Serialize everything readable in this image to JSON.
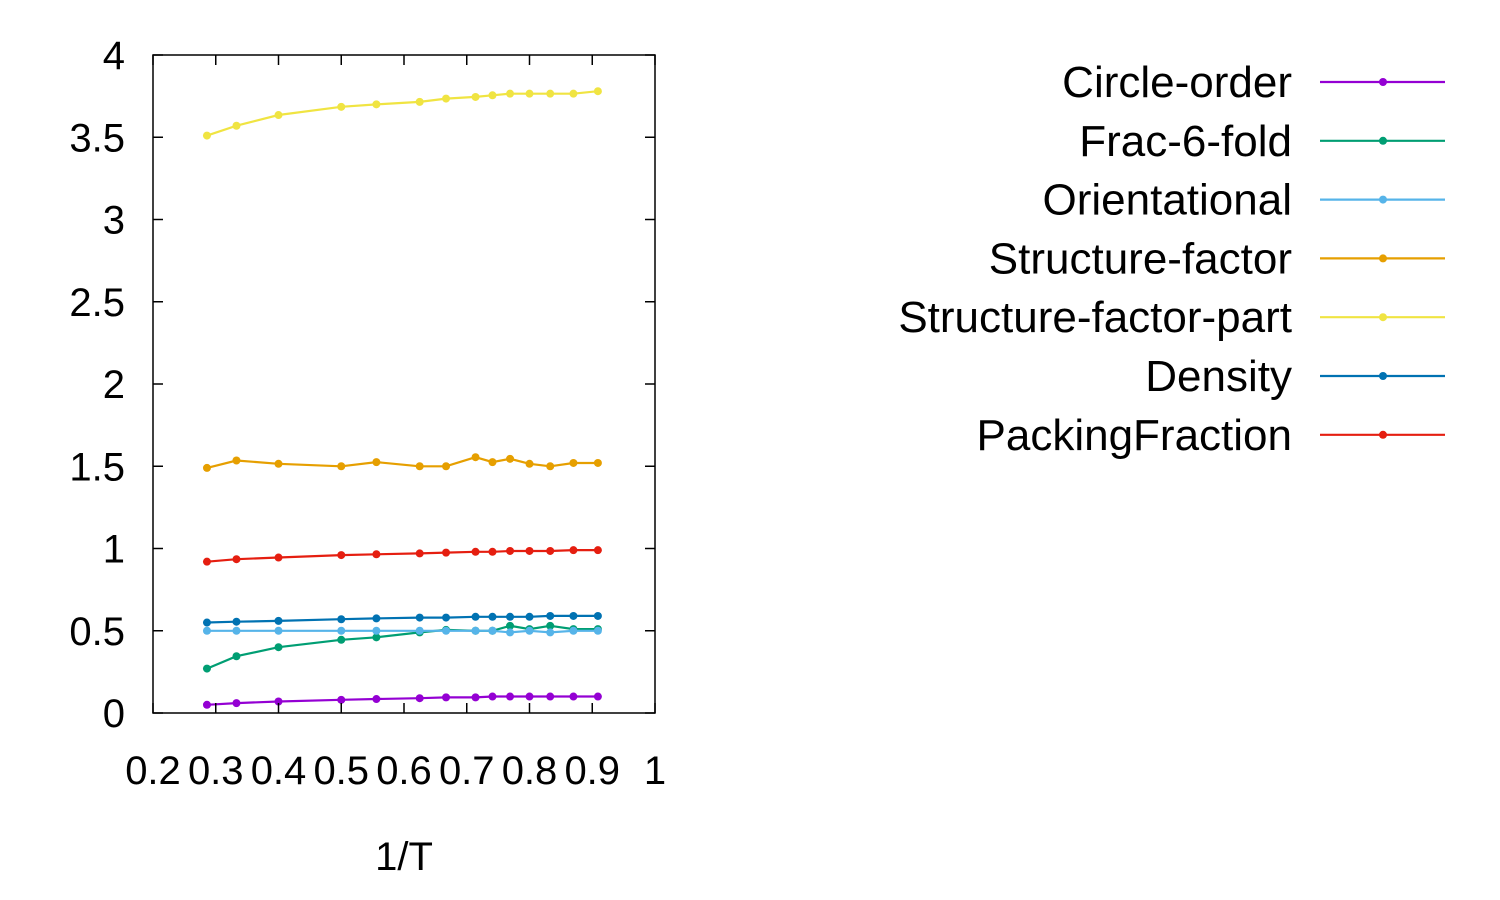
{
  "chart_data": {
    "type": "line",
    "title": "",
    "xlabel": "1/T",
    "ylabel": "",
    "xlim": [
      0.2,
      1.0
    ],
    "ylim": [
      0,
      4
    ],
    "xticks": [
      "0.2",
      "0.3",
      "0.4",
      "0.5",
      "0.6",
      "0.7",
      "0.8",
      "0.9",
      "1"
    ],
    "yticks": [
      "0",
      "0.5",
      "1",
      "1.5",
      "2",
      "2.5",
      "3",
      "3.5",
      "4"
    ],
    "grid": false,
    "legend_position": "right",
    "x": [
      0.286,
      0.333,
      0.4,
      0.5,
      0.556,
      0.625,
      0.667,
      0.714,
      0.741,
      0.769,
      0.8,
      0.833,
      0.87,
      0.909
    ],
    "series": [
      {
        "name": "Circle-order",
        "color": "#9400d3",
        "values": [
          0.05,
          0.06,
          0.07,
          0.08,
          0.085,
          0.09,
          0.095,
          0.095,
          0.1,
          0.1,
          0.1,
          0.1,
          0.1,
          0.1
        ]
      },
      {
        "name": "Frac-6-fold",
        "color": "#009e73",
        "values": [
          0.27,
          0.345,
          0.4,
          0.445,
          0.46,
          0.49,
          0.505,
          0.5,
          0.5,
          0.53,
          0.51,
          0.53,
          0.51,
          0.51
        ]
      },
      {
        "name": "Orientational",
        "color": "#56b4e9",
        "values": [
          0.5,
          0.5,
          0.5,
          0.5,
          0.5,
          0.5,
          0.5,
          0.5,
          0.5,
          0.49,
          0.5,
          0.49,
          0.5,
          0.5
        ]
      },
      {
        "name": "Structure-factor",
        "color": "#e69f00",
        "values": [
          1.49,
          1.535,
          1.515,
          1.5,
          1.525,
          1.5,
          1.5,
          1.555,
          1.525,
          1.545,
          1.515,
          1.5,
          1.52,
          1.52
        ]
      },
      {
        "name": "Structure-factor-part",
        "color": "#f0e442",
        "values": [
          3.51,
          3.57,
          3.635,
          3.685,
          3.7,
          3.715,
          3.735,
          3.745,
          3.755,
          3.765,
          3.765,
          3.765,
          3.765,
          3.78
        ]
      },
      {
        "name": "Density",
        "color": "#0072b2",
        "values": [
          0.55,
          0.555,
          0.56,
          0.57,
          0.575,
          0.58,
          0.58,
          0.585,
          0.585,
          0.585,
          0.585,
          0.59,
          0.59,
          0.59
        ]
      },
      {
        "name": "PackingFraction",
        "color": "#e51e10",
        "values": [
          0.92,
          0.935,
          0.945,
          0.96,
          0.965,
          0.97,
          0.975,
          0.98,
          0.98,
          0.985,
          0.985,
          0.985,
          0.99,
          0.99
        ]
      }
    ]
  }
}
